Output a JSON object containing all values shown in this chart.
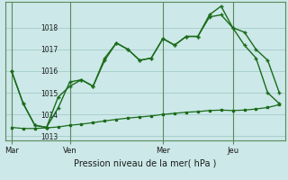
{
  "title": "Pression niveau de la mer( hPa )",
  "bg_color": "#cce8e8",
  "grid_color": "#aacece",
  "line_color": "#1a6b1a",
  "spine_color": "#5a8a5a",
  "ylim": [
    1012.8,
    1019.2
  ],
  "yticks": [
    1013,
    1014,
    1015,
    1016,
    1017,
    1018
  ],
  "xtick_labels": [
    "Mar",
    "Ven",
    "Mer",
    "Jeu"
  ],
  "xtick_pos": [
    0,
    5,
    13,
    19
  ],
  "vline_pos": [
    0,
    5,
    13,
    19
  ],
  "series1_x": [
    0,
    1,
    2,
    3,
    4,
    5,
    6,
    7,
    8,
    9,
    10,
    11,
    12,
    13,
    14,
    15,
    16,
    17,
    18,
    19,
    20,
    21,
    22,
    23
  ],
  "series1_y": [
    1016.0,
    1014.5,
    1013.5,
    1013.4,
    1014.8,
    1015.3,
    1015.6,
    1015.3,
    1016.6,
    1017.3,
    1017.0,
    1016.5,
    1016.6,
    1017.5,
    1017.2,
    1017.6,
    1017.6,
    1018.5,
    1018.6,
    1018.0,
    1017.8,
    1017.0,
    1016.5,
    1015.0
  ],
  "series2_x": [
    0,
    1,
    2,
    3,
    4,
    5,
    6,
    7,
    8,
    9,
    10,
    11,
    12,
    13,
    14,
    15,
    16,
    17,
    18,
    19,
    20,
    21,
    22,
    23
  ],
  "series2_y": [
    1016.0,
    1014.5,
    1013.5,
    1013.4,
    1014.3,
    1015.5,
    1015.6,
    1015.3,
    1016.5,
    1017.3,
    1017.0,
    1016.5,
    1016.6,
    1017.5,
    1017.2,
    1017.6,
    1017.6,
    1018.6,
    1019.0,
    1018.0,
    1017.2,
    1016.6,
    1015.0,
    1014.5
  ],
  "series3_x": [
    0,
    1,
    2,
    3,
    4,
    5,
    6,
    7,
    8,
    9,
    10,
    11,
    12,
    13,
    14,
    15,
    16,
    17,
    18,
    19,
    20,
    21,
    22,
    23
  ],
  "series3_y": [
    1013.4,
    1013.35,
    1013.35,
    1013.38,
    1013.42,
    1013.5,
    1013.55,
    1013.62,
    1013.7,
    1013.77,
    1013.83,
    1013.88,
    1013.93,
    1014.0,
    1014.05,
    1014.1,
    1014.13,
    1014.18,
    1014.2,
    1014.18,
    1014.2,
    1014.25,
    1014.32,
    1014.45
  ]
}
